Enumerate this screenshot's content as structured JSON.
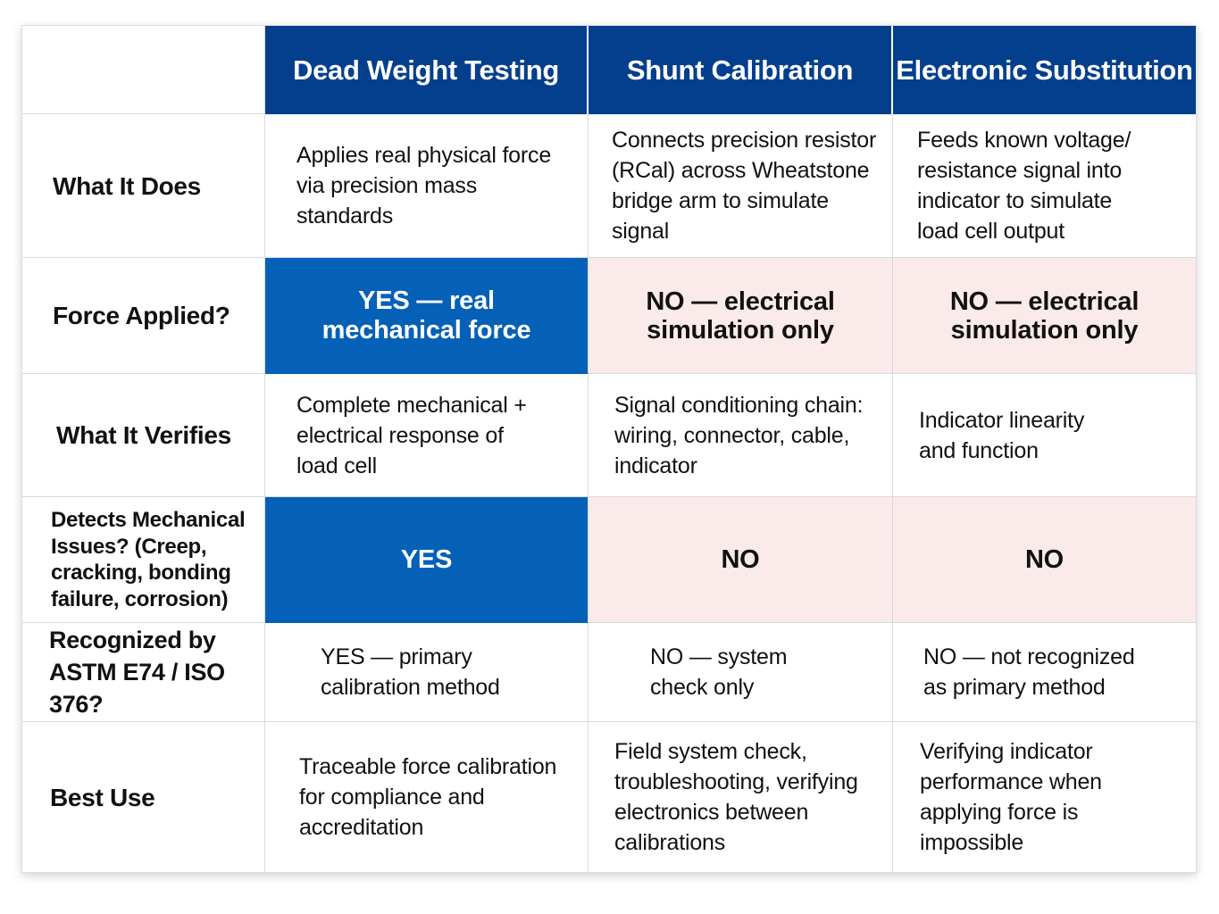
{
  "columns": [
    "Dead Weight Testing",
    "Shunt Calibration",
    "Electronic Substitution"
  ],
  "rows": [
    {
      "label": "What It Does",
      "cells": [
        "Applies real physical force\nvia precision mass standards",
        "Connects precision resistor\n(RCal) across Wheatstone\nbridge arm to simulate signal",
        "Feeds known voltage/\nresistance signal into\nindicator to simulate\nload cell output"
      ]
    },
    {
      "label": "Force Applied?",
      "cells": [
        "YES — real\nmechanical force",
        "NO — electrical\nsimulation only",
        "NO — electrical\nsimulation only"
      ]
    },
    {
      "label": "What It Verifies",
      "cells": [
        "Complete mechanical +\nelectrical response of\nload cell",
        "Signal conditioning chain:\nwiring, connector, cable,\nindicator",
        "Indicator linearity\nand function"
      ]
    },
    {
      "label": "Detects Mechanical\nIssues? (Creep,\ncracking, bonding\nfailure, corrosion)",
      "cells": [
        "YES",
        "NO",
        "NO"
      ]
    },
    {
      "label": "Recognized by\nASTM E74 / ISO 376?",
      "cells": [
        "YES — primary\ncalibration method",
        "NO — system\ncheck only",
        "NO — not recognized\nas primary method"
      ]
    },
    {
      "label": "Best Use",
      "cells": [
        "Traceable force calibration\nfor compliance and\naccreditation",
        "Field system check,\ntroubleshooting, verifying\nelectronics between\ncalibrations",
        "Verifying indicator\nperformance when\napplying force is\nimpossible"
      ]
    }
  ],
  "colors": {
    "header_bg": "#033f8c",
    "yes_bg": "#0561b7",
    "no_bg": "#fbeaea",
    "grid_line": "#d6dae0"
  }
}
